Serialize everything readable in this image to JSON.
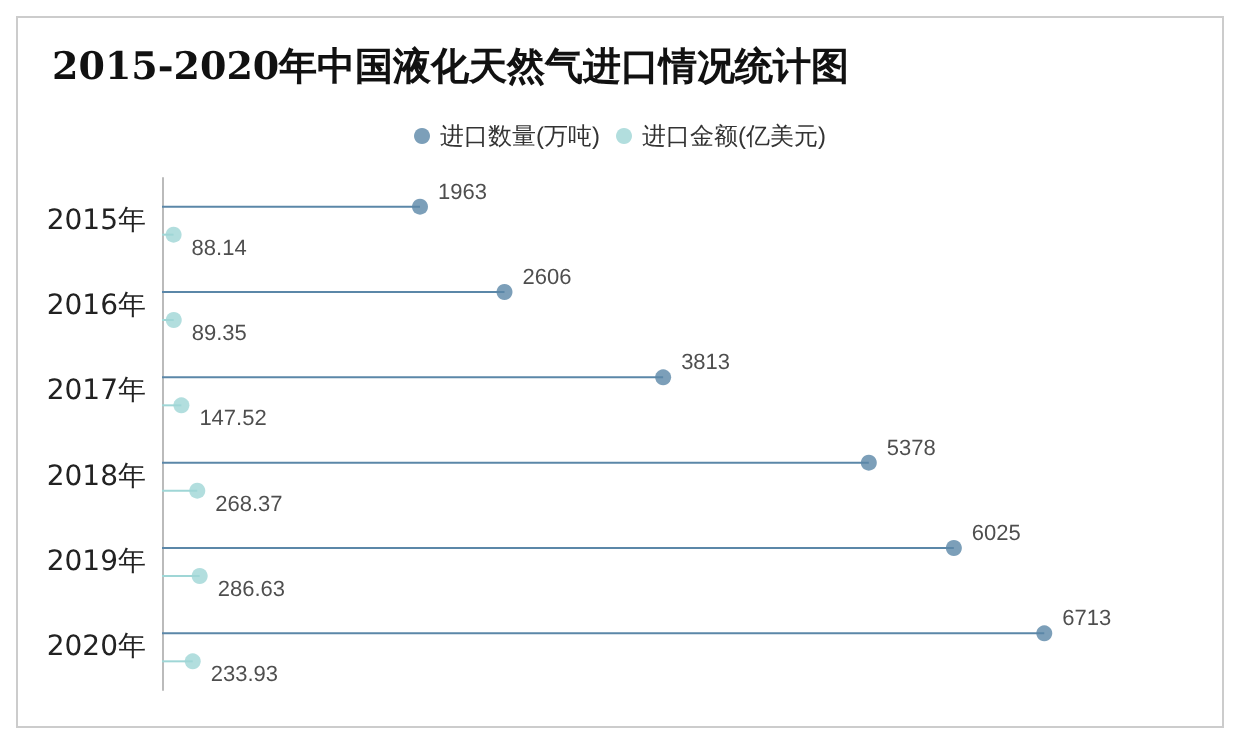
{
  "chart_data": {
    "type": "lollipop",
    "title": "2015-2020年中国液化天然气进口情况统计图",
    "orientation": "horizontal",
    "categories": [
      "2015年",
      "2016年",
      "2017年",
      "2018年",
      "2019年",
      "2020年"
    ],
    "series": [
      {
        "name": "进口数量(万吨)",
        "color": "#5b87a8",
        "values": [
          1963,
          2606,
          3813,
          5378,
          6025,
          6713
        ]
      },
      {
        "name": "进口金额(亿美元)",
        "color": "#9fd6d6",
        "values": [
          88.14,
          89.35,
          147.52,
          268.37,
          286.63,
          233.93
        ]
      }
    ],
    "data_labels": true,
    "legend": "top",
    "marker": "circle",
    "grid": false,
    "tick_labels": "y"
  }
}
